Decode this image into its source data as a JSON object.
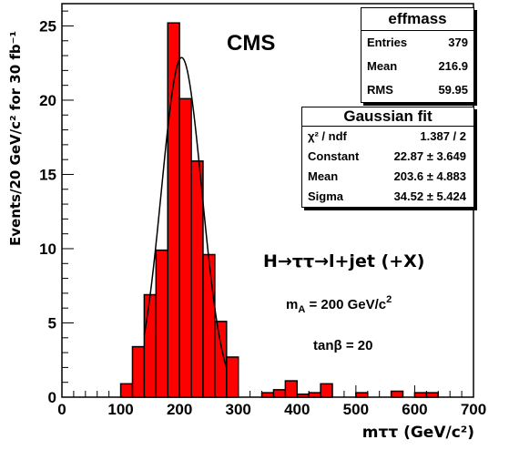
{
  "chart_data": {
    "type": "bar",
    "title": "CMS",
    "xlabel": "mττ (GeV/c²)",
    "ylabel": "Events/20 GeV/c² for 30 fb⁻¹",
    "xlim": [
      0,
      700
    ],
    "ylim": [
      0,
      26.5
    ],
    "x_ticks": [
      0,
      100,
      200,
      300,
      400,
      500,
      600,
      700
    ],
    "y_ticks": [
      0,
      5,
      10,
      15,
      20,
      25
    ],
    "bin_width": 20,
    "bins_low_edge": [
      100,
      120,
      140,
      160,
      180,
      200,
      220,
      240,
      260,
      280,
      300,
      320,
      340,
      360,
      380,
      400,
      420,
      440,
      460,
      480,
      500,
      520,
      540,
      560,
      580,
      600,
      620
    ],
    "values": [
      0.9,
      3.4,
      6.9,
      9.9,
      25.2,
      20.1,
      15.9,
      9.6,
      5.1,
      2.7,
      0,
      0,
      0.3,
      0.5,
      1.1,
      0.2,
      0.3,
      0.9,
      0,
      0,
      0.3,
      0,
      0,
      0.4,
      0,
      0.3,
      0.3
    ],
    "fill_color": "#ff0000",
    "edge_color": "#000000",
    "fit_curve": {
      "function": "gaussian",
      "constant": 22.87,
      "mean": 203.6,
      "sigma": 34.52,
      "x_range": [
        140,
        280
      ]
    },
    "grid": false,
    "annotations": {
      "process": "H→ττ→l+jet (+X)",
      "mass": "m",
      "mass_sub": "A",
      "mass_value": " = 200 GeV/c",
      "mass_sup": "2",
      "tanbeta": "tanβ = 20"
    }
  },
  "stats_box": {
    "title": "effmass",
    "rows": [
      {
        "label": "Entries",
        "value": "379"
      },
      {
        "label": "Mean",
        "value": "216.9"
      },
      {
        "label": "RMS",
        "value": "59.95"
      }
    ]
  },
  "fit_box": {
    "title": "Gaussian fit",
    "rows": [
      {
        "label": "χ² / ndf",
        "value": "1.387 / 2"
      },
      {
        "label": "Constant",
        "value": "22.87 ± 3.649"
      },
      {
        "label": "Mean",
        "value": "203.6 ± 4.883"
      },
      {
        "label": "Sigma",
        "value": "34.52 ± 5.424"
      }
    ]
  }
}
